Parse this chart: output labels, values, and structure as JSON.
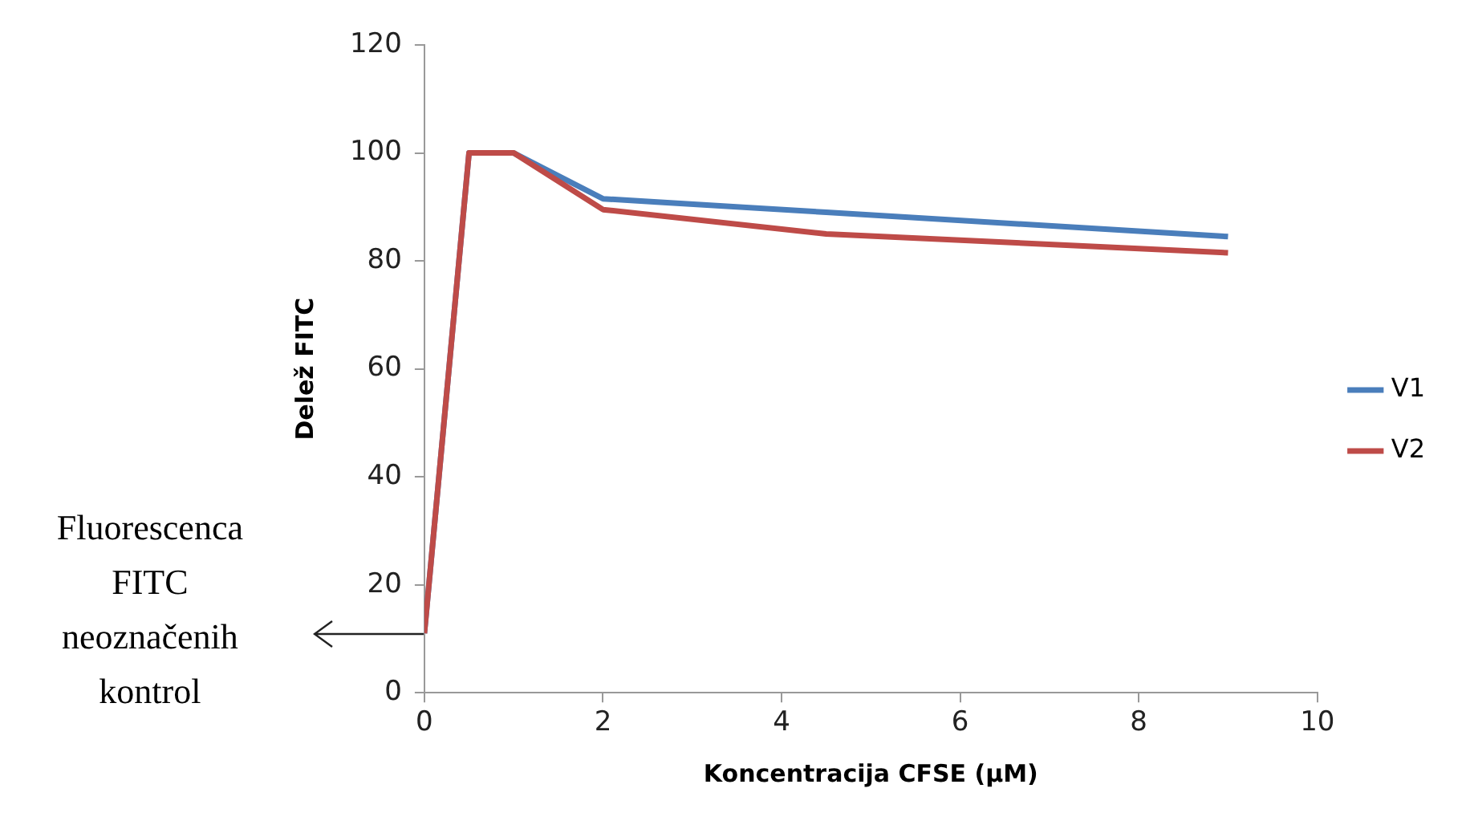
{
  "chart_data": {
    "type": "line",
    "xlabel": "Koncentracija CFSE (µM)",
    "ylabel": "Delež FITC",
    "xlim": [
      0,
      10
    ],
    "xticks": [
      0,
      2,
      4,
      6,
      8,
      10
    ],
    "ylim": [
      0,
      120
    ],
    "yticks": [
      0,
      20,
      40,
      60,
      80,
      100,
      120
    ],
    "series": [
      {
        "name": "V1",
        "color": "#4a7ebb",
        "x": [
          0,
          0.5,
          1,
          2,
          4.5,
          9
        ],
        "values": [
          11,
          100,
          100,
          91.5,
          89,
          84.5
        ]
      },
      {
        "name": "V2",
        "color": "#be4b48",
        "x": [
          0,
          0.5,
          1,
          2,
          4.5,
          9
        ],
        "values": [
          11,
          100,
          100,
          89.5,
          85,
          81.5
        ]
      }
    ],
    "annotations": [
      "Fluorescenca FITC neoznačenih kontrol"
    ],
    "legend": "right",
    "grid": false,
    "marker": "none",
    "line_style": "solid"
  }
}
